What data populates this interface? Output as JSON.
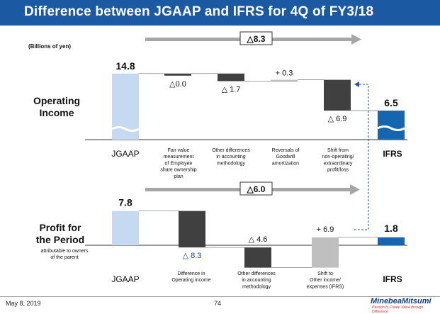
{
  "title": "Difference between JGAAP and IFRS for 4Q of FY3/18",
  "unit_label": "(Billions of yen)",
  "footer": {
    "date": "May 8, 2019",
    "page": "74",
    "logo": "MinebeaMitsumi",
    "tagline": "Passion to Create Value through Difference"
  },
  "colors": {
    "title_bg": "#1b5aa3",
    "jgaap": "#c5d9f1",
    "ifrs": "#1565b0",
    "dark": "#404040",
    "gray": "#bfbfbf",
    "arrow": "#a6a6a6",
    "blue_text": "#1f3aa8"
  },
  "chart_data": [
    {
      "type": "bar",
      "title": "Operating Income",
      "total_difference_label": "△8.3",
      "start": {
        "label": "JGAAP",
        "value": 14.8,
        "value_label": "14.8"
      },
      "end": {
        "label": "IFRS",
        "value": 6.5,
        "value_label": "6.5"
      },
      "steps": [
        {
          "category": "Fair value measurement of Employee share ownership plan",
          "lines": [
            "Fair value",
            "measurement",
            "of Employee",
            "share ownership",
            "plan"
          ],
          "value": 0.0,
          "label": "△0.0"
        },
        {
          "category": "Other differences in accounting methodology",
          "lines": [
            "Other differences",
            "in accounting",
            "methodology"
          ],
          "value": -1.7,
          "label": "△ 1.7"
        },
        {
          "category": "Reversals of Goodwill amortization",
          "lines": [
            "Reversals of",
            "Goodwill",
            "amortization"
          ],
          "value": 0.3,
          "label": "+ 0.3"
        },
        {
          "category": "Shift from non-operating/ extraordinary profit/loss",
          "lines": [
            "Shift from",
            "non-operating/",
            "extraordinary",
            "profit/loss"
          ],
          "value": -6.9,
          "label": "△ 6.9"
        }
      ]
    },
    {
      "type": "bar",
      "title": "Profit for the Period",
      "title_lines": [
        "Profit for",
        "the Period"
      ],
      "subtitle_lines": [
        "attributable to owners",
        "of the parent"
      ],
      "total_difference_label": "△6.0",
      "start": {
        "label": "JGAAP",
        "value": 7.8,
        "value_label": "7.8"
      },
      "end": {
        "label": "IFRS",
        "value": 1.8,
        "value_label": "1.8"
      },
      "steps": [
        {
          "category": "Difference in Operating income",
          "lines": [
            "Difference in",
            "Operating income"
          ],
          "value": -8.3,
          "label": "△ 8.3"
        },
        {
          "category": "Other differences in accounting methodology",
          "lines": [
            "Other differences",
            "in accounting",
            "methodology"
          ],
          "value": -4.6,
          "label": "△ 4.6"
        },
        {
          "category": "Shift to Other income/ expenses (IFRS)",
          "lines": [
            "Shift to",
            "Other income/",
            "expenses (IFRS)"
          ],
          "value": 6.9,
          "label": "+ 6.9"
        }
      ]
    }
  ]
}
